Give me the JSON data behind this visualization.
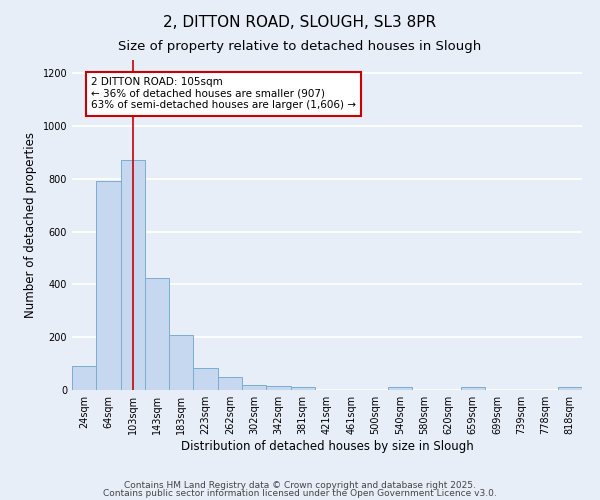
{
  "title1": "2, DITTON ROAD, SLOUGH, SL3 8PR",
  "title2": "Size of property relative to detached houses in Slough",
  "xlabel": "Distribution of detached houses by size in Slough",
  "ylabel": "Number of detached properties",
  "categories": [
    "24sqm",
    "64sqm",
    "103sqm",
    "143sqm",
    "183sqm",
    "223sqm",
    "262sqm",
    "302sqm",
    "342sqm",
    "381sqm",
    "421sqm",
    "461sqm",
    "500sqm",
    "540sqm",
    "580sqm",
    "620sqm",
    "659sqm",
    "699sqm",
    "739sqm",
    "778sqm",
    "818sqm"
  ],
  "values": [
    90,
    790,
    870,
    425,
    210,
    85,
    50,
    20,
    15,
    10,
    0,
    0,
    0,
    10,
    0,
    0,
    10,
    0,
    0,
    0,
    10
  ],
  "bar_color": "#c5d8f0",
  "bar_edge_color": "#7aadd4",
  "background_color": "#e8eef8",
  "grid_color": "#ffffff",
  "vline_x": 2.0,
  "vline_color": "#cc0000",
  "annotation_text": "2 DITTON ROAD: 105sqm\n← 36% of detached houses are smaller (907)\n63% of semi-detached houses are larger (1,606) →",
  "annotation_box_color": "#ffffff",
  "annotation_box_edge": "#cc0000",
  "ylim": [
    0,
    1250
  ],
  "yticks": [
    0,
    200,
    400,
    600,
    800,
    1000,
    1200
  ],
  "footnote1": "Contains HM Land Registry data © Crown copyright and database right 2025.",
  "footnote2": "Contains public sector information licensed under the Open Government Licence v3.0.",
  "title_fontsize": 11,
  "subtitle_fontsize": 9.5,
  "axis_label_fontsize": 8.5,
  "tick_fontsize": 7,
  "annotation_fontsize": 7.5,
  "footnote_fontsize": 6.5
}
